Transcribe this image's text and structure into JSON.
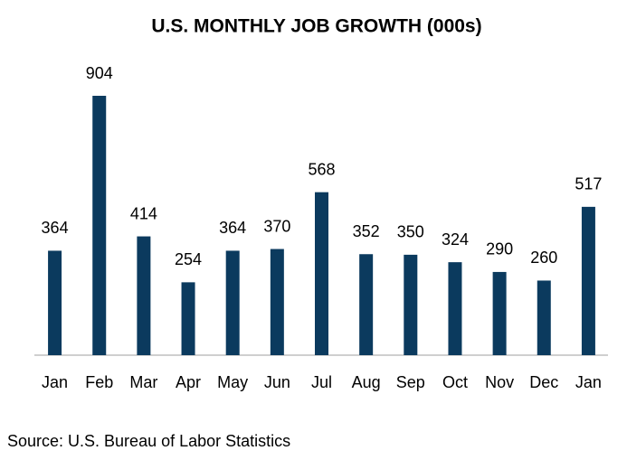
{
  "chart_data": {
    "type": "bar",
    "title": "U.S. MONTHLY JOB GROWTH (000s)",
    "categories": [
      "Jan",
      "Feb",
      "Mar",
      "Apr",
      "May",
      "Jun",
      "Jul",
      "Aug",
      "Sep",
      "Oct",
      "Nov",
      "Dec",
      "Jan"
    ],
    "values": [
      364,
      904,
      414,
      254,
      364,
      370,
      568,
      352,
      350,
      324,
      290,
      260,
      517
    ],
    "color": "#0b3a5e",
    "source": "Source: U.S. Bureau of Labor Statistics"
  }
}
